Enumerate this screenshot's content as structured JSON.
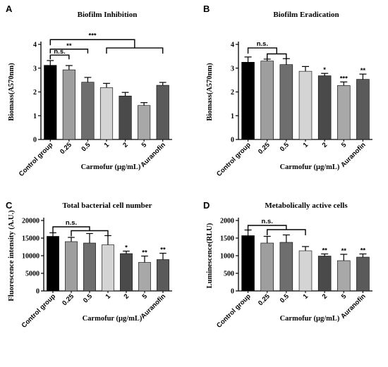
{
  "chart_data": [
    {
      "id": "A",
      "type": "bar",
      "panel_label": "A",
      "title": "Biofilm Inhibition",
      "ylabel": "Biomass(A570nm)",
      "xlabel": "Carmofur (μg/mL)",
      "categories": [
        "Control group",
        "0.25",
        "0.5",
        "1",
        "2",
        "5",
        "Auranofin"
      ],
      "values": [
        3.12,
        2.93,
        2.41,
        2.18,
        1.83,
        1.43,
        2.28
      ],
      "errors": [
        0.2,
        0.18,
        0.2,
        0.18,
        0.15,
        0.12,
        0.12
      ],
      "bar_colors": [
        "#000000",
        "#9e9e9e",
        "#6e6e6e",
        "#d4d4d4",
        "#4a4a4a",
        "#a8a8a8",
        "#5a5a5a"
      ],
      "ylim": [
        0,
        4
      ],
      "yticks": [
        0,
        1,
        2,
        3,
        4
      ],
      "bar_stars": [
        "",
        "",
        "",
        "",
        "",
        "",
        ""
      ],
      "brackets": [
        {
          "label": "n.s.",
          "from": 0,
          "to": 1,
          "y": 3.55
        },
        {
          "label": "**",
          "from": 0,
          "to": 2,
          "y": 3.8
        },
        {
          "label": "***",
          "from": 0,
          "to": 6,
          "y": 4.2,
          "group_from": 3,
          "group_to": 6,
          "group_y": 3.85
        }
      ]
    },
    {
      "id": "B",
      "type": "bar",
      "panel_label": "B",
      "title": "Biofilm Eradication",
      "ylabel": "Biomass(A570nm)",
      "xlabel": "Carmofur (μg/mL)",
      "categories": [
        "Control group",
        "0.25",
        "0.5",
        "1",
        "2",
        "5",
        "Auranofin"
      ],
      "values": [
        3.25,
        3.3,
        3.15,
        2.87,
        2.68,
        2.27,
        2.53
      ],
      "errors": [
        0.22,
        0.08,
        0.25,
        0.2,
        0.1,
        0.15,
        0.22
      ],
      "bar_colors": [
        "#000000",
        "#9e9e9e",
        "#6e6e6e",
        "#d4d4d4",
        "#4a4a4a",
        "#a8a8a8",
        "#5a5a5a"
      ],
      "ylim": [
        0,
        4
      ],
      "yticks": [
        0,
        1,
        2,
        3,
        4
      ],
      "bar_stars": [
        "",
        "",
        "",
        "",
        "*",
        "***",
        "**"
      ],
      "brackets": [
        {
          "label": "n.s.",
          "from": 0,
          "to": 2,
          "y": 3.85,
          "group_from": 1,
          "group_to": 2,
          "group_y": 3.6
        }
      ]
    },
    {
      "id": "C",
      "type": "bar",
      "panel_label": "C",
      "title": "Total bacterial cell number",
      "ylabel": "Fluorescence intensity (A.U.)",
      "xlabel": "Carmofur (μg/mL)",
      "categories": [
        "Control group",
        "0.25",
        "0.5",
        "1",
        "2",
        "5",
        "Auranofin"
      ],
      "values": [
        15500,
        14000,
        13600,
        13100,
        10600,
        8100,
        8900
      ],
      "errors": [
        1000,
        1200,
        2700,
        2600,
        700,
        1800,
        1800
      ],
      "bar_colors": [
        "#000000",
        "#9e9e9e",
        "#6e6e6e",
        "#d4d4d4",
        "#4a4a4a",
        "#a8a8a8",
        "#5a5a5a"
      ],
      "ylim": [
        0,
        20000
      ],
      "yticks": [
        0,
        5000,
        10000,
        15000,
        20000
      ],
      "bar_stars": [
        "",
        "",
        "",
        "",
        "*",
        "**",
        "**"
      ],
      "brackets": [
        {
          "label": "n.s.",
          "from": 0,
          "to": 3,
          "y": 18200,
          "group_from": 1,
          "group_to": 3,
          "group_y": 17100
        }
      ]
    },
    {
      "id": "D",
      "type": "bar",
      "panel_label": "D",
      "title": "Metabolically active cells",
      "ylabel": "Luminescence(RLU)",
      "xlabel": "Carmofur (μg/mL)",
      "categories": [
        "Control group",
        "0.25",
        "0.5",
        "1",
        "2",
        "5",
        "Auranofin"
      ],
      "values": [
        1570,
        1360,
        1380,
        1140,
        990,
        860,
        960
      ],
      "errors": [
        160,
        190,
        210,
        120,
        60,
        180,
        90
      ],
      "bar_colors": [
        "#000000",
        "#9e9e9e",
        "#6e6e6e",
        "#d4d4d4",
        "#4a4a4a",
        "#a8a8a8",
        "#5a5a5a"
      ],
      "ylim": [
        0,
        2000
      ],
      "yticks": [
        0,
        500,
        1000,
        1500,
        2000
      ],
      "bar_stars": [
        "",
        "",
        "",
        "",
        "**",
        "**",
        "**"
      ],
      "brackets": [
        {
          "label": "n.s.",
          "from": 0,
          "to": 3,
          "y": 1860,
          "group_from": 1,
          "group_to": 3,
          "group_y": 1740
        }
      ]
    }
  ]
}
